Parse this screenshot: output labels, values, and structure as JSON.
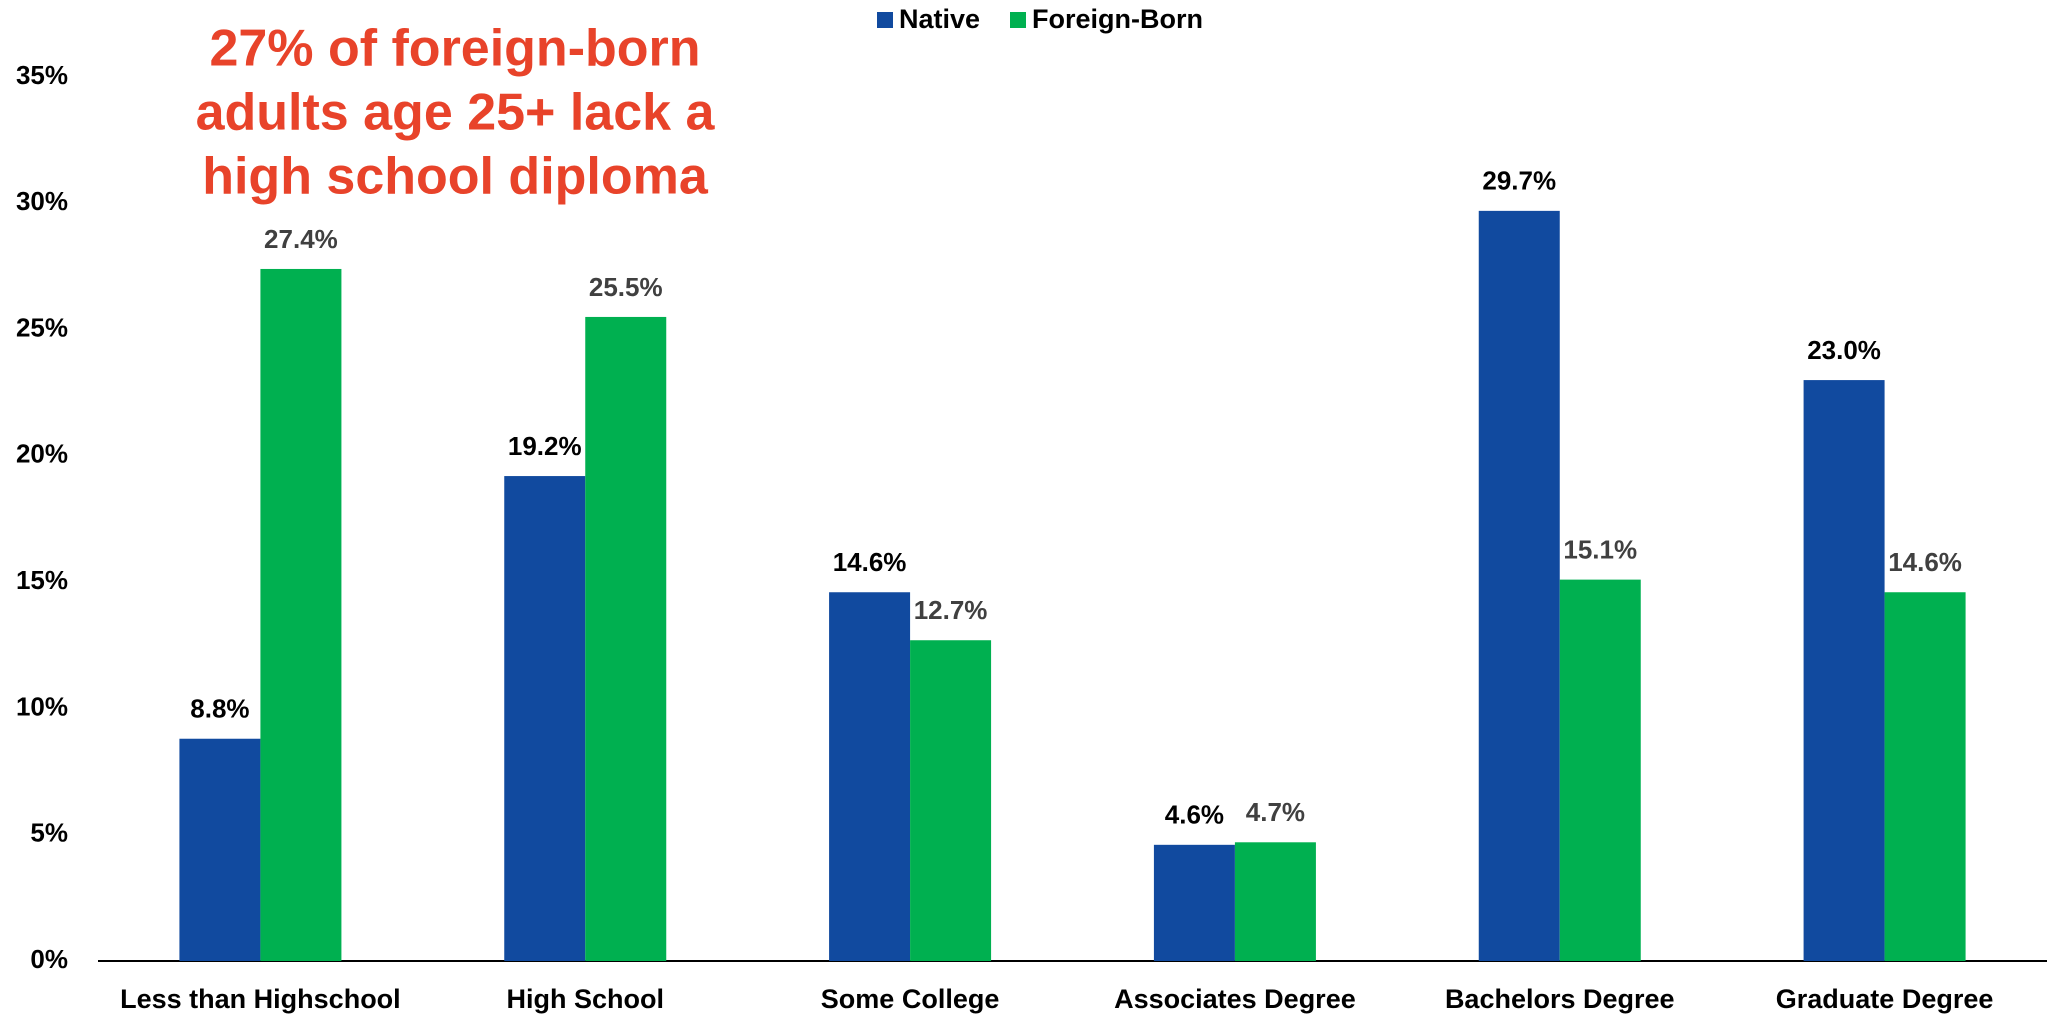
{
  "chart_data": {
    "type": "bar",
    "annotation": [
      "27% of foreign-born",
      "adults age 25+ lack a",
      "high school diploma"
    ],
    "categories": [
      "Less than Highschool",
      "High School",
      "Some College",
      "Associates Degree",
      "Bachelors Degree",
      "Graduate Degree"
    ],
    "series": [
      {
        "name": "Native",
        "color": "#114a9f",
        "values": [
          8.8,
          19.2,
          14.6,
          4.6,
          29.7,
          23.0
        ],
        "value_labels": [
          "8.8%",
          "19.2%",
          "14.6%",
          "4.6%",
          "29.7%",
          "23.0%"
        ]
      },
      {
        "name": "Foreign-Born",
        "color": "#00b050",
        "values": [
          27.4,
          25.5,
          12.7,
          4.7,
          15.1,
          14.6
        ],
        "value_labels": [
          "27.4%",
          "25.5%",
          "12.7%",
          "4.7%",
          "15.1%",
          "14.6%"
        ]
      }
    ],
    "ylim": [
      0,
      35
    ],
    "yticks": [
      {
        "value": 0,
        "label": "0%"
      },
      {
        "value": 5,
        "label": "5%"
      },
      {
        "value": 10,
        "label": "10%"
      },
      {
        "value": 15,
        "label": "15%"
      },
      {
        "value": 20,
        "label": "20%"
      },
      {
        "value": 25,
        "label": "25%"
      },
      {
        "value": 30,
        "label": "30%"
      },
      {
        "value": 35,
        "label": "35%"
      }
    ],
    "legend": "top"
  }
}
